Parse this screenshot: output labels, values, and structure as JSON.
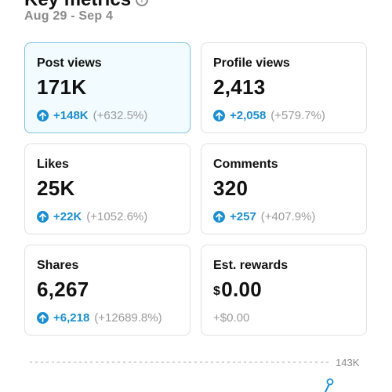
{
  "header": {
    "title": "Key metrics",
    "date_range": "Aug 29 - Sep 4"
  },
  "metrics": [
    {
      "label": "Post views",
      "value": "171K",
      "delta": "+148K",
      "pct": "(+632.5%)",
      "selected": true
    },
    {
      "label": "Profile views",
      "value": "2,413",
      "delta": "+2,058",
      "pct": "(+579.7%)"
    },
    {
      "label": "Likes",
      "value": "25K",
      "delta": "+22K",
      "pct": "(+1052.6%)"
    },
    {
      "label": "Comments",
      "value": "320",
      "delta": "+257",
      "pct": "(+407.9%)"
    },
    {
      "label": "Shares",
      "value": "6,267",
      "delta": "+6,218",
      "pct": "(+12689.8%)"
    },
    {
      "label": "Est. rewards",
      "currency": "$",
      "value": "0.00",
      "delta": "+$0.00",
      "pct": ""
    }
  ],
  "chart": {
    "y_max_label": "143K",
    "accent": "#1b8ecf"
  }
}
